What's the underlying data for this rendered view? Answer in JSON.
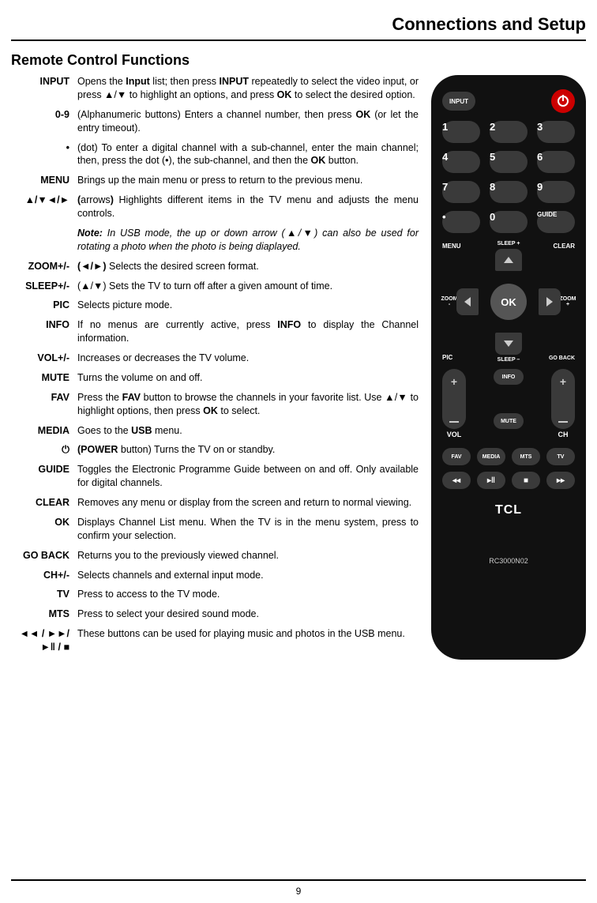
{
  "header": "Connections and Setup",
  "section": "Remote Control Functions",
  "page_number": "9",
  "defs": [
    {
      "label": "INPUT",
      "desc": "Opens the <b>Input</b> list; then press <b>INPUT</b> repeatedly to select the video input, or press ▲/▼ to highlight an options, and press <b>OK</b> to select the desired option."
    },
    {
      "label": "0-9",
      "desc": "(Alphanumeric buttons) Enters a channel number, then press <b>OK</b> (or let the entry timeout)."
    },
    {
      "label": "•",
      "desc": "(dot) To enter a digital channel with a sub-channel, enter the main channel; then, press the dot (•), the sub-channel, and then the <b>OK</b> button."
    },
    {
      "label": "MENU",
      "desc": "Brings up the main menu or press to return to the previous menu."
    },
    {
      "label": "▲/▼◄/►",
      "desc": "<b>(</b>arrows<b>)</b>  Highlights different items in the TV menu and adjusts the menu controls."
    },
    {
      "label": "",
      "desc": "<span class='note'><b>Note:</b> In USB mode, the up or down arrow (▲/▼) can also be used for rotating a photo when the photo is being diaplayed.</span>"
    },
    {
      "label": "ZOOM+/-",
      "desc": "<b>(◄/►)</b> Selects the desired screen format."
    },
    {
      "label": "SLEEP+/-",
      "desc": "(▲/▼) Sets the TV to turn off after a given amount of time."
    },
    {
      "label": "PIC",
      "desc": "Selects picture mode."
    },
    {
      "label": "INFO",
      "desc": "If no menus are currently active, press <b>INFO</b> to display the Channel information."
    },
    {
      "label": "VOL+/-",
      "desc": "Increases or decreases the TV volume."
    },
    {
      "label": "MUTE",
      "desc": "Turns the volume on and off."
    },
    {
      "label": "FAV",
      "desc": "Press the <b>FAV</b> button to browse the channels in your favorite list. Use ▲/▼ to highlight options, then press <b>OK</b> to select."
    },
    {
      "label": "MEDIA",
      "desc": "Goes to the <b>USB</b> menu."
    },
    {
      "label": "⏻",
      "desc": "<b>(POWER</b> button) Turns the TV on or standby."
    },
    {
      "label": "GUIDE",
      "desc": "Toggles the Electronic Programme Guide between on and off. Only available for digital channels."
    },
    {
      "label": "CLEAR",
      "desc": "Removes any menu or display from the screen and return to normal viewing."
    },
    {
      "label": "OK",
      "desc": "Displays Channel List menu. When the TV is in the menu system, press to confirm your selection."
    },
    {
      "label": "GO BACK",
      "desc": "Returns you to the previously viewed channel."
    },
    {
      "label": "CH+/-",
      "desc": "Selects channels and external input mode."
    },
    {
      "label": "TV",
      "desc": "Press to access to the TV mode."
    },
    {
      "label": "MTS",
      "desc": "Press to select your desired sound mode."
    },
    {
      "label": "◄◄ / ►►/ ►‖ / ■",
      "desc": "These buttons can be used for playing music and photos in the USB menu."
    }
  ],
  "remote": {
    "input": "INPUT",
    "guide": "GUIDE",
    "menu": "MENU",
    "clear": "CLEAR",
    "zoom": "ZOOM",
    "pic": "PIC",
    "goback": "GO BACK",
    "ok": "OK",
    "sleep_plus": "SLEEP +",
    "sleep_minus": "SLEEP –",
    "info": "INFO",
    "mute": "MUTE",
    "vol": "VOL",
    "ch": "CH",
    "fav": "FAV",
    "media": "MEDIA",
    "mts": "MTS",
    "tv": "TV",
    "brand": "TCL",
    "model": "RC3000N02",
    "numbers": [
      "1",
      "2",
      "3",
      "4",
      "5",
      "6",
      "7",
      "8",
      "9",
      "•",
      "0"
    ]
  }
}
